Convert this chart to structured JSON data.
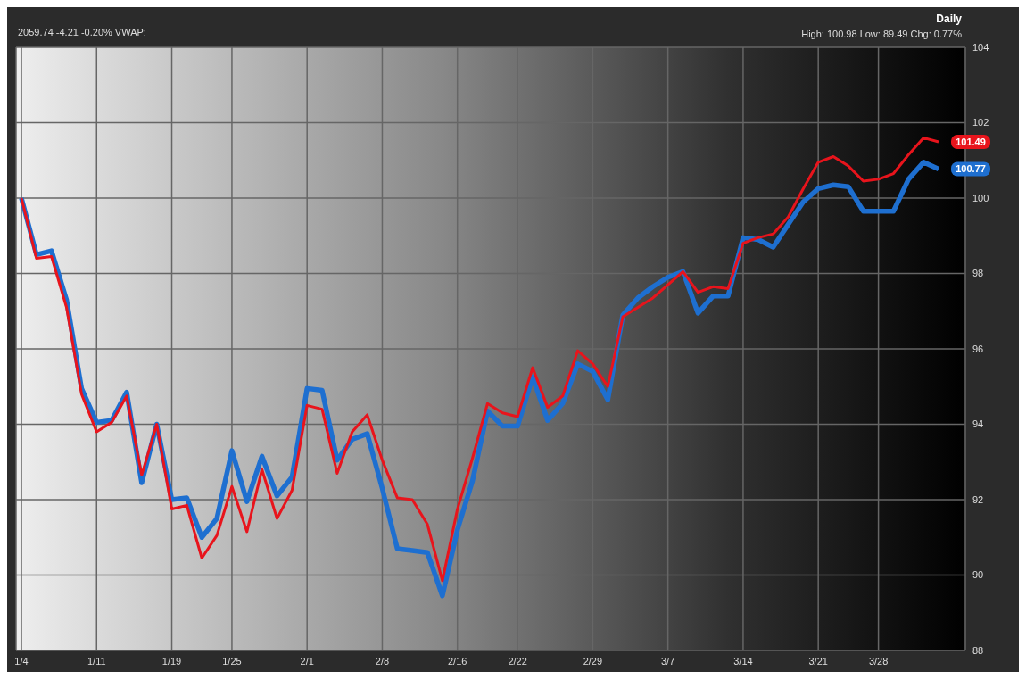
{
  "chart_data": {
    "type": "line",
    "subtitle": "2059.74 -4.21 -0.20%  VWAP:",
    "annotations": [
      "Daily",
      "High: 100.98 Low: 89.49 Chg: 0.77%"
    ],
    "categories": [
      "1/4",
      null,
      null,
      null,
      null,
      "1/11",
      null,
      null,
      null,
      null,
      "1/19",
      null,
      null,
      null,
      "1/25",
      null,
      null,
      null,
      null,
      "2/1",
      null,
      null,
      null,
      null,
      "2/8",
      null,
      null,
      null,
      null,
      "2/16",
      null,
      null,
      null,
      "2/22",
      null,
      null,
      null,
      null,
      "2/29",
      null,
      null,
      null,
      null,
      "3/7",
      null,
      null,
      null,
      null,
      "3/14",
      null,
      null,
      null,
      null,
      "3/21",
      null,
      null,
      null,
      "3/28",
      null,
      null,
      null,
      null
    ],
    "series": [
      {
        "color": "#1e6fd0",
        "values": [
          100,
          98.5,
          98.6,
          97.3,
          94.95,
          94.05,
          94.1,
          94.85,
          92.45,
          94.0,
          92.0,
          92.05,
          91.0,
          91.5,
          93.3,
          91.95,
          93.15,
          92.1,
          92.6,
          94.95,
          94.9,
          93.05,
          93.6,
          93.75,
          92.3,
          90.7,
          90.65,
          90.6,
          89.45,
          91.2,
          92.5,
          94.35,
          93.95,
          93.95,
          95.25,
          94.1,
          94.55,
          95.6,
          95.4,
          94.65,
          96.9,
          97.35,
          97.65,
          97.9,
          98.05,
          96.95,
          97.4,
          97.4,
          98.95,
          98.9,
          98.7,
          99.3,
          99.9,
          100.25,
          100.35,
          100.3,
          99.65,
          99.65,
          99.65,
          100.5,
          100.95,
          100.77
        ],
        "value_labels": [
          null,
          null,
          null,
          null,
          null,
          null,
          null,
          null,
          null,
          null,
          null,
          null,
          null,
          null,
          null,
          null,
          null,
          null,
          null,
          null,
          null,
          null,
          null,
          null,
          null,
          null,
          null,
          null,
          null,
          null,
          null,
          null,
          null,
          null,
          null,
          null,
          null,
          null,
          null,
          null,
          null,
          null,
          null,
          null,
          null,
          null,
          null,
          null,
          null,
          null,
          null,
          null,
          null,
          null,
          null,
          null,
          null,
          null,
          null,
          null,
          null,
          "100.77"
        ]
      },
      {
        "color": "#e8141c",
        "values": [
          100,
          98.4,
          98.45,
          97.1,
          94.8,
          93.8,
          94.05,
          94.75,
          92.65,
          94.0,
          91.75,
          91.85,
          90.45,
          91.05,
          92.35,
          91.15,
          92.8,
          91.5,
          92.25,
          94.5,
          94.4,
          92.7,
          93.8,
          94.25,
          93.05,
          92.05,
          92.0,
          91.35,
          89.85,
          91.75,
          93.1,
          94.55,
          94.3,
          94.2,
          95.5,
          94.45,
          94.75,
          95.95,
          95.6,
          95.0,
          96.85,
          97.1,
          97.35,
          97.7,
          98.05,
          97.5,
          97.65,
          97.6,
          98.8,
          98.95,
          99.05,
          99.5,
          100.25,
          100.95,
          101.1,
          100.85,
          100.45,
          100.5,
          100.65,
          101.15,
          101.6,
          101.49
        ],
        "value_labels": [
          null,
          null,
          null,
          null,
          null,
          null,
          null,
          null,
          null,
          null,
          null,
          null,
          null,
          null,
          null,
          null,
          null,
          null,
          null,
          null,
          null,
          null,
          null,
          null,
          null,
          null,
          null,
          null,
          null,
          null,
          null,
          null,
          null,
          null,
          null,
          null,
          null,
          null,
          null,
          null,
          null,
          null,
          null,
          null,
          null,
          null,
          null,
          null,
          null,
          null,
          null,
          null,
          null,
          null,
          null,
          null,
          null,
          null,
          null,
          null,
          null,
          "101.49"
        ]
      }
    ],
    "ylim": [
      88,
      104
    ],
    "yticks": [
      88,
      90,
      92,
      94,
      96,
      98,
      100,
      102,
      104
    ],
    "grid": true
  }
}
